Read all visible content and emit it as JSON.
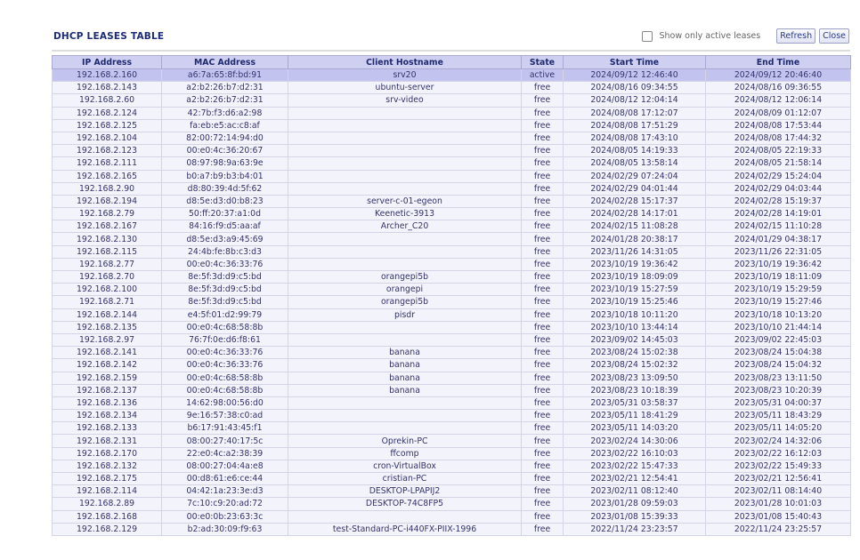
{
  "header": {
    "title": "DHCP LEASES TABLE",
    "show_active_label": "Show only active leases",
    "show_active_checked": false,
    "refresh_label": "Refresh",
    "close_label": "Close"
  },
  "colors": {
    "header_bg": "#cfcff2",
    "active_row_bg": "#c3c3f0",
    "row_bg": "#f3f3fb",
    "title": "#1b2b7a"
  },
  "table": {
    "columns": [
      "IP Address",
      "MAC Address",
      "Client Hostname",
      "State",
      "Start Time",
      "End Time"
    ],
    "rows": [
      [
        "192.168.2.160",
        "a6:7a:65:8f:bd:91",
        "srv20",
        "active",
        "2024/09/12 12:46:40",
        "2024/09/12 20:46:40"
      ],
      [
        "192.168.2.143",
        "a2:b2:26:b7:d2:31",
        "ubuntu-server",
        "free",
        "2024/08/16 09:34:55",
        "2024/08/16 09:36:55"
      ],
      [
        "192.168.2.60",
        "a2:b2:26:b7:d2:31",
        "srv-video",
        "free",
        "2024/08/12 12:04:14",
        "2024/08/12 12:06:14"
      ],
      [
        "192.168.2.124",
        "42:7b:f3:d6:a2:98",
        "",
        "free",
        "2024/08/08 17:12:07",
        "2024/08/09 01:12:07"
      ],
      [
        "192.168.2.125",
        "fa:eb:e5:ac:c8:af",
        "",
        "free",
        "2024/08/08 17:51:29",
        "2024/08/08 17:53:44"
      ],
      [
        "192.168.2.104",
        "82:00:72:14:94:d0",
        "",
        "free",
        "2024/08/08 17:43:10",
        "2024/08/08 17:44:32"
      ],
      [
        "192.168.2.123",
        "00:e0:4c:36:20:67",
        "",
        "free",
        "2024/08/05 14:19:33",
        "2024/08/05 22:19:33"
      ],
      [
        "192.168.2.111",
        "08:97:98:9a:63:9e",
        "",
        "free",
        "2024/08/05 13:58:14",
        "2024/08/05 21:58:14"
      ],
      [
        "192.168.2.165",
        "b0:a7:b9:b3:b4:01",
        "",
        "free",
        "2024/02/29 07:24:04",
        "2024/02/29 15:24:04"
      ],
      [
        "192.168.2.90",
        "d8:80:39:4d:5f:62",
        "",
        "free",
        "2024/02/29 04:01:44",
        "2024/02/29 04:03:44"
      ],
      [
        "192.168.2.194",
        "d8:5e:d3:d0:b8:23",
        "server-c-01-egeon",
        "free",
        "2024/02/28 15:17:37",
        "2024/02/28 15:19:37"
      ],
      [
        "192.168.2.79",
        "50:ff:20:37:a1:0d",
        "Keenetic-3913",
        "free",
        "2024/02/28 14:17:01",
        "2024/02/28 14:19:01"
      ],
      [
        "192.168.2.167",
        "84:16:f9:d5:aa:af",
        "Archer_C20",
        "free",
        "2024/02/15 11:08:28",
        "2024/02/15 11:10:28"
      ],
      [
        "192.168.2.130",
        "d8:5e:d3:a9:45:69",
        "",
        "free",
        "2024/01/28 20:38:17",
        "2024/01/29 04:38:17"
      ],
      [
        "192.168.2.115",
        "24:4b:fe:8b:c3:d3",
        "",
        "free",
        "2023/11/26 14:31:05",
        "2023/11/26 22:31:05"
      ],
      [
        "192.168.2.77",
        "00:e0:4c:36:33:76",
        "",
        "free",
        "2023/10/19 19:36:42",
        "2023/10/19 19:36:42"
      ],
      [
        "192.168.2.70",
        "8e:5f:3d:d9:c5:bd",
        "orangepi5b",
        "free",
        "2023/10/19 18:09:09",
        "2023/10/19 18:11:09"
      ],
      [
        "192.168.2.100",
        "8e:5f:3d:d9:c5:bd",
        "orangepi",
        "free",
        "2023/10/19 15:27:59",
        "2023/10/19 15:29:59"
      ],
      [
        "192.168.2.71",
        "8e:5f:3d:d9:c5:bd",
        "orangepi5b",
        "free",
        "2023/10/19 15:25:46",
        "2023/10/19 15:27:46"
      ],
      [
        "192.168.2.144",
        "e4:5f:01:d2:99:79",
        "pisdr",
        "free",
        "2023/10/18 10:11:20",
        "2023/10/18 10:13:20"
      ],
      [
        "192.168.2.135",
        "00:e0:4c:68:58:8b",
        "",
        "free",
        "2023/10/10 13:44:14",
        "2023/10/10 21:44:14"
      ],
      [
        "192.168.2.97",
        "76:7f:0e:d6:f8:61",
        "",
        "free",
        "2023/09/02 14:45:03",
        "2023/09/02 22:45:03"
      ],
      [
        "192.168.2.141",
        "00:e0:4c:36:33:76",
        "banana",
        "free",
        "2023/08/24 15:02:38",
        "2023/08/24 15:04:38"
      ],
      [
        "192.168.2.142",
        "00:e0:4c:36:33:76",
        "banana",
        "free",
        "2023/08/24 15:02:32",
        "2023/08/24 15:04:32"
      ],
      [
        "192.168.2.159",
        "00:e0:4c:68:58:8b",
        "banana",
        "free",
        "2023/08/23 13:09:50",
        "2023/08/23 13:11:50"
      ],
      [
        "192.168.2.137",
        "00:e0:4c:68:58:8b",
        "banana",
        "free",
        "2023/08/23 10:18:39",
        "2023/08/23 10:20:39"
      ],
      [
        "192.168.2.136",
        "14:62:98:00:56:d0",
        "",
        "free",
        "2023/05/31 03:58:37",
        "2023/05/31 04:00:37"
      ],
      [
        "192.168.2.134",
        "9e:16:57:38:c0:ad",
        "",
        "free",
        "2023/05/11 18:41:29",
        "2023/05/11 18:43:29"
      ],
      [
        "192.168.2.133",
        "b6:17:91:43:45:f1",
        "",
        "free",
        "2023/05/11 14:03:20",
        "2023/05/11 14:05:20"
      ],
      [
        "192.168.2.131",
        "08:00:27:40:17:5c",
        "Oprekin-PC",
        "free",
        "2023/02/24 14:30:06",
        "2023/02/24 14:32:06"
      ],
      [
        "192.168.2.170",
        "22:e0:4c:a2:38:39",
        "ffcomp",
        "free",
        "2023/02/22 16:10:03",
        "2023/02/22 16:12:03"
      ],
      [
        "192.168.2.132",
        "08:00:27:04:4a:e8",
        "cron-VirtualBox",
        "free",
        "2023/02/22 15:47:33",
        "2023/02/22 15:49:33"
      ],
      [
        "192.168.2.175",
        "00:d8:61:e6:ce:44",
        "cristian-PC",
        "free",
        "2023/02/21 12:54:41",
        "2023/02/21 12:56:41"
      ],
      [
        "192.168.2.114",
        "04:42:1a:23:3e:d3",
        "DESKTOP-LPAPIJ2",
        "free",
        "2023/02/11 08:12:40",
        "2023/02/11 08:14:40"
      ],
      [
        "192.168.2.89",
        "7c:10:c9:20:ad:72",
        "DESKTOP-74C8FP5",
        "free",
        "2023/01/28 09:59:03",
        "2023/01/28 10:01:03"
      ],
      [
        "192.168.2.168",
        "00:e0:0b:23:63:3c",
        "",
        "free",
        "2023/01/08 15:39:33",
        "2023/01/08 15:40:43"
      ],
      [
        "192.168.2.129",
        "b2:ad:30:09:f9:63",
        "test-Standard-PC-i440FX-PIIX-1996",
        "free",
        "2022/11/24 23:23:57",
        "2022/11/24 23:25:57"
      ]
    ]
  }
}
